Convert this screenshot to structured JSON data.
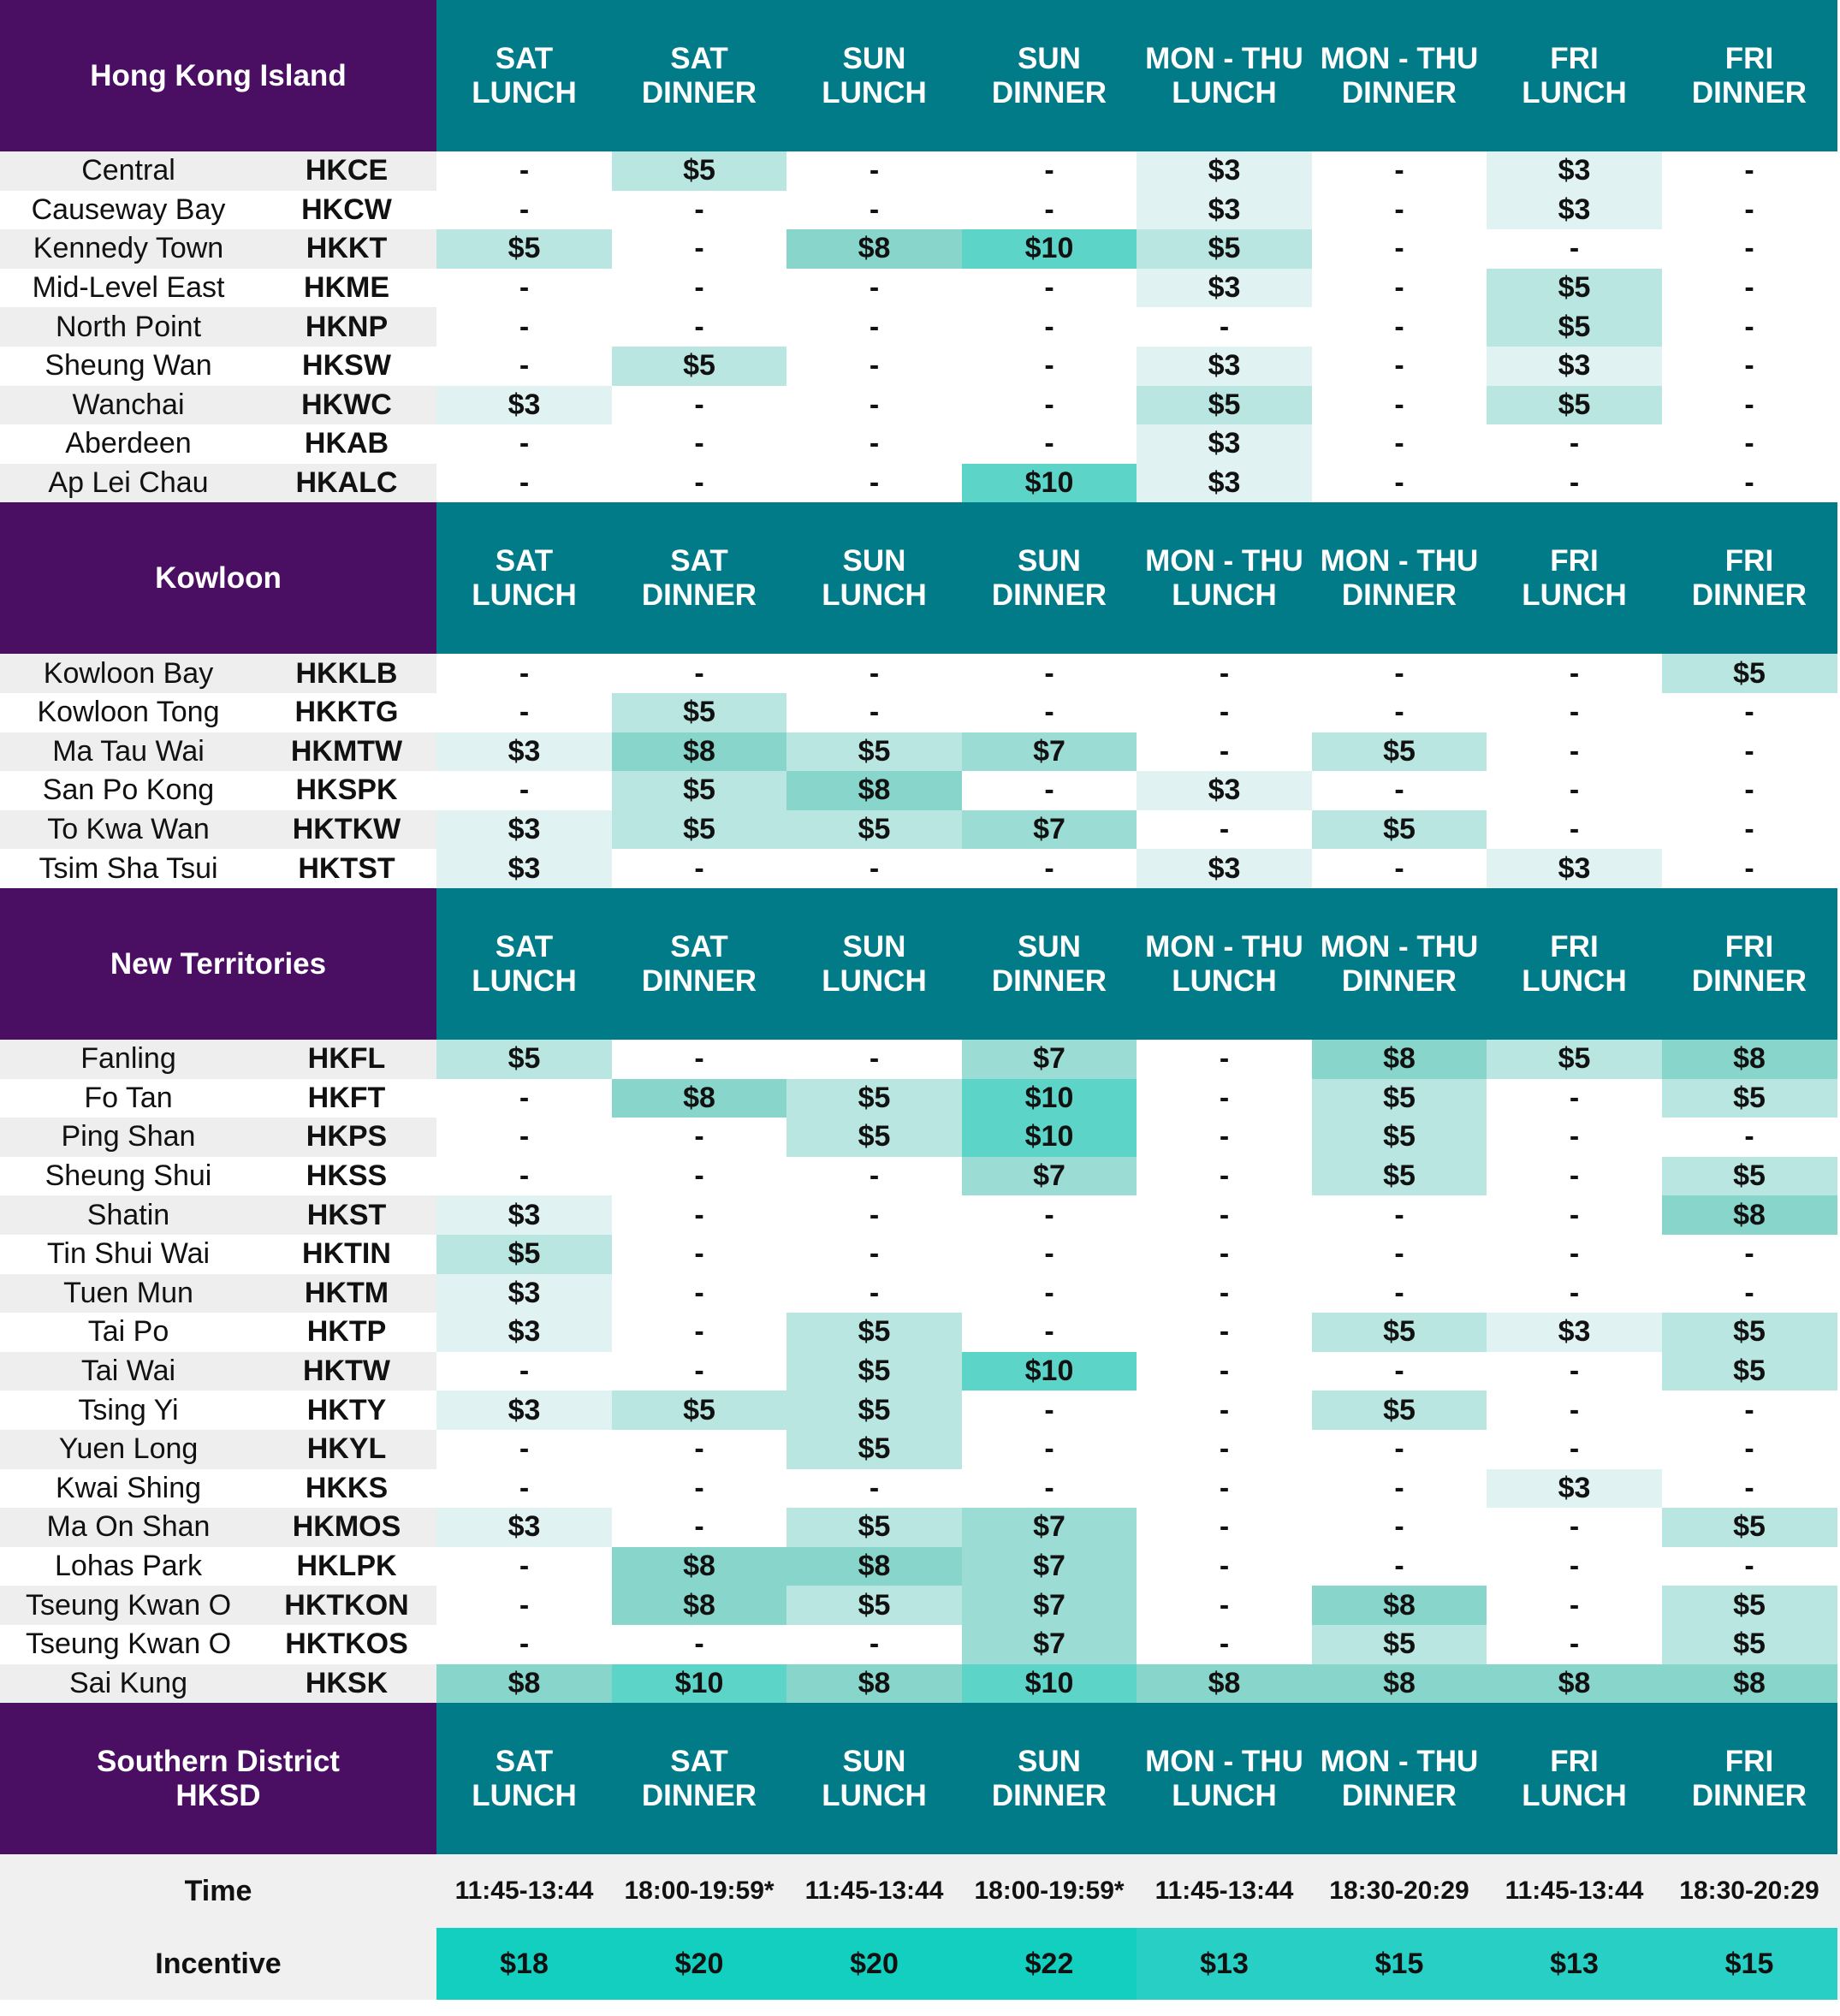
{
  "colors": {
    "region_header": "#4a0e63",
    "column_header": "#027b88",
    "row_stripe": "#eeeeee",
    "footer_band": "#f0f0f0",
    "tier": {
      "$3": "#e0f2f1",
      "$5": "#b9e6e1",
      "$7": "#9bdcd4",
      "$8": "#88d6cb",
      "$10": "#5cd4c7"
    },
    "incentive": {
      "$18": "#12cfc0",
      "$20": "#12cfc0",
      "$22": "#12cfc0",
      "$13": "#27cfc4",
      "$15": "#27cfc4"
    }
  },
  "columns": [
    "SAT\nLUNCH",
    "SAT\nDINNER",
    "SUN\nLUNCH",
    "SUN\nDINNER",
    "MON - THU\nLUNCH",
    "MON - THU\nDINNER",
    "FRI\nLUNCH",
    "FRI\nDINNER"
  ],
  "sections": [
    {
      "title": "Hong Kong Island",
      "rows": [
        {
          "name": "Central",
          "code": "HKCE",
          "values": [
            "-",
            "$5",
            "-",
            "-",
            "$3",
            "-",
            "$3",
            "-"
          ]
        },
        {
          "name": "Causeway Bay",
          "code": "HKCW",
          "values": [
            "-",
            "-",
            "-",
            "-",
            "$3",
            "-",
            "$3",
            "-"
          ]
        },
        {
          "name": "Kennedy Town",
          "code": "HKKT",
          "values": [
            "$5",
            "-",
            "$8",
            "$10",
            "$5",
            "-",
            "-",
            "-"
          ]
        },
        {
          "name": "Mid-Level East",
          "code": "HKME",
          "values": [
            "-",
            "-",
            "-",
            "-",
            "$3",
            "-",
            "$5",
            "-"
          ]
        },
        {
          "name": "North Point",
          "code": "HKNP",
          "values": [
            "-",
            "-",
            "-",
            "-",
            "-",
            "-",
            "$5",
            "-"
          ]
        },
        {
          "name": "Sheung Wan",
          "code": "HKSW",
          "values": [
            "-",
            "$5",
            "-",
            "-",
            "$3",
            "-",
            "$3",
            "-"
          ]
        },
        {
          "name": "Wanchai",
          "code": "HKWC",
          "values": [
            "$3",
            "-",
            "-",
            "-",
            "$5",
            "-",
            "$5",
            "-"
          ]
        },
        {
          "name": "Aberdeen",
          "code": "HKAB",
          "values": [
            "-",
            "-",
            "-",
            "-",
            "$3",
            "-",
            "-",
            "-"
          ]
        },
        {
          "name": "Ap Lei Chau",
          "code": "HKALC",
          "values": [
            "-",
            "-",
            "-",
            "$10",
            "$3",
            "-",
            "-",
            "-"
          ]
        }
      ]
    },
    {
      "title": "Kowloon",
      "rows": [
        {
          "name": "Kowloon Bay",
          "code": "HKKLB",
          "values": [
            "-",
            "-",
            "-",
            "-",
            "-",
            "-",
            "-",
            "$5"
          ]
        },
        {
          "name": "Kowloon Tong",
          "code": "HKKTG",
          "values": [
            "-",
            "$5",
            "-",
            "-",
            "-",
            "-",
            "-",
            "-"
          ]
        },
        {
          "name": "Ma Tau Wai",
          "code": "HKMTW",
          "values": [
            "$3",
            "$8",
            "$5",
            "$7",
            "-",
            "$5",
            "-",
            "-"
          ]
        },
        {
          "name": "San Po Kong",
          "code": "HKSPK",
          "values": [
            "-",
            "$5",
            "$8",
            "-",
            "$3",
            "-",
            "-",
            "-"
          ]
        },
        {
          "name": "To Kwa Wan",
          "code": "HKTKW",
          "values": [
            "$3",
            "$5",
            "$5",
            "$7",
            "-",
            "$5",
            "-",
            "-"
          ]
        },
        {
          "name": "Tsim Sha Tsui",
          "code": "HKTST",
          "values": [
            "$3",
            "-",
            "-",
            "-",
            "$3",
            "-",
            "$3",
            "-"
          ]
        }
      ]
    },
    {
      "title": "New Territories",
      "rows": [
        {
          "name": "Fanling",
          "code": "HKFL",
          "values": [
            "$5",
            "-",
            "-",
            "$7",
            "-",
            "$8",
            "$5",
            "$8"
          ]
        },
        {
          "name": "Fo Tan",
          "code": "HKFT",
          "values": [
            "-",
            "$8",
            "$5",
            "$10",
            "-",
            "$5",
            "-",
            "$5"
          ]
        },
        {
          "name": "Ping Shan",
          "code": "HKPS",
          "values": [
            "-",
            "-",
            "$5",
            "$10",
            "-",
            "$5",
            "-",
            "-"
          ]
        },
        {
          "name": "Sheung Shui",
          "code": "HKSS",
          "values": [
            "-",
            "-",
            "-",
            "$7",
            "-",
            "$5",
            "-",
            "$5"
          ]
        },
        {
          "name": "Shatin",
          "code": "HKST",
          "values": [
            "$3",
            "-",
            "-",
            "-",
            "-",
            "-",
            "-",
            "$8"
          ]
        },
        {
          "name": "Tin Shui Wai",
          "code": "HKTIN",
          "values": [
            "$5",
            "-",
            "-",
            "-",
            "-",
            "-",
            "-",
            "-"
          ]
        },
        {
          "name": "Tuen Mun",
          "code": "HKTM",
          "values": [
            "$3",
            "-",
            "-",
            "-",
            "-",
            "-",
            "-",
            "-"
          ]
        },
        {
          "name": "Tai Po",
          "code": "HKTP",
          "values": [
            "$3",
            "-",
            "$5",
            "-",
            "-",
            "$5",
            "$3",
            "$5"
          ]
        },
        {
          "name": "Tai Wai",
          "code": "HKTW",
          "values": [
            "-",
            "-",
            "$5",
            "$10",
            "-",
            "-",
            "-",
            "$5"
          ]
        },
        {
          "name": "Tsing Yi",
          "code": "HKTY",
          "values": [
            "$3",
            "$5",
            "$5",
            "-",
            "-",
            "$5",
            "-",
            "-"
          ]
        },
        {
          "name": "Yuen Long",
          "code": "HKYL",
          "values": [
            "-",
            "-",
            "$5",
            "-",
            "-",
            "-",
            "-",
            "-"
          ]
        },
        {
          "name": "Kwai Shing",
          "code": "HKKS",
          "values": [
            "-",
            "-",
            "-",
            "-",
            "-",
            "-",
            "$3",
            "-"
          ]
        },
        {
          "name": "Ma On Shan",
          "code": "HKMOS",
          "values": [
            "$3",
            "-",
            "$5",
            "$7",
            "-",
            "-",
            "-",
            "$5"
          ]
        },
        {
          "name": "Lohas Park",
          "code": "HKLPK",
          "values": [
            "-",
            "$8",
            "$8",
            "$7",
            "-",
            "-",
            "-",
            "-"
          ]
        },
        {
          "name": "Tseung Kwan O",
          "code": "HKTKON",
          "values": [
            "-",
            "$8",
            "$5",
            "$7",
            "-",
            "$8",
            "-",
            "$5"
          ]
        },
        {
          "name": "Tseung Kwan O",
          "code": "HKTKOS",
          "values": [
            "-",
            "-",
            "-",
            "$7",
            "-",
            "$5",
            "-",
            "$5"
          ]
        },
        {
          "name": "Sai Kung",
          "code": "HKSK",
          "values": [
            "$8",
            "$10",
            "$8",
            "$10",
            "$8",
            "$8",
            "$8",
            "$8"
          ]
        }
      ]
    },
    {
      "title": "Southern District\nHKSD",
      "rows": []
    }
  ],
  "footer": {
    "time_label": "Time",
    "times": [
      "11:45-13:44",
      "18:00-19:59*",
      "11:45-13:44",
      "18:00-19:59*",
      "11:45-13:44",
      "18:30-20:29",
      "11:45-13:44",
      "18:30-20:29"
    ],
    "incentive_label": "Incentive",
    "incentives": [
      "$18",
      "$20",
      "$20",
      "$22",
      "$13",
      "$15",
      "$13",
      "$15"
    ]
  }
}
